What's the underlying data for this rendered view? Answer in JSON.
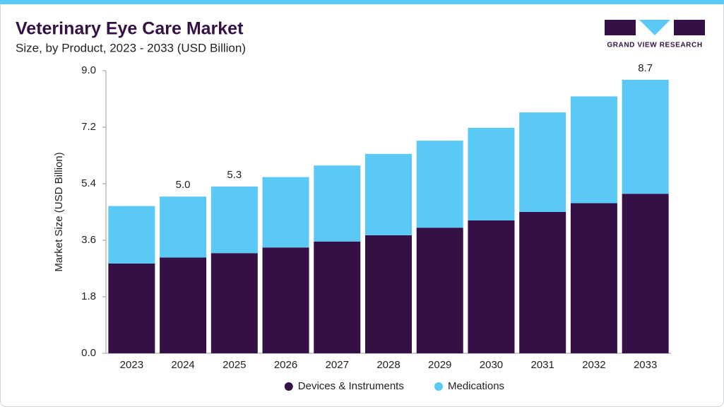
{
  "chart_data": {
    "type": "stacked-bar",
    "title": "Veterinary Eye Care Market",
    "subtitle": "Size, by Product, 2023 - 2033 (USD Billion)",
    "brand": "GRAND VIEW RESEARCH",
    "y_label": "Market Size (USD Billion)",
    "categories": [
      "2023",
      "2024",
      "2025",
      "2026",
      "2027",
      "2028",
      "2029",
      "2030",
      "2031",
      "2032",
      "2033"
    ],
    "series": [
      {
        "name": "Devices & Instruments",
        "color": "#341046",
        "values": [
          2.86,
          3.05,
          3.19,
          3.37,
          3.56,
          3.76,
          4.0,
          4.23,
          4.5,
          4.78,
          5.08
        ]
      },
      {
        "name": "Medications",
        "color": "#5bc9f5",
        "values": [
          1.83,
          1.94,
          2.12,
          2.24,
          2.42,
          2.59,
          2.77,
          2.95,
          3.17,
          3.4,
          3.63
        ]
      }
    ],
    "total_labels": [
      null,
      "5.0",
      "5.3",
      null,
      null,
      null,
      null,
      null,
      null,
      null,
      "8.7"
    ],
    "ylim": [
      0,
      9
    ],
    "yticks": [
      {
        "value": 0,
        "label": "0.0"
      },
      {
        "value": 1.8,
        "label": "1.8"
      },
      {
        "value": 3.6,
        "label": "3.6"
      },
      {
        "value": 5.4,
        "label": "5.4"
      },
      {
        "value": 7.2,
        "label": "7.2"
      },
      {
        "value": 9,
        "label": "9.0"
      }
    ],
    "grid": false,
    "legend": "bottom"
  }
}
